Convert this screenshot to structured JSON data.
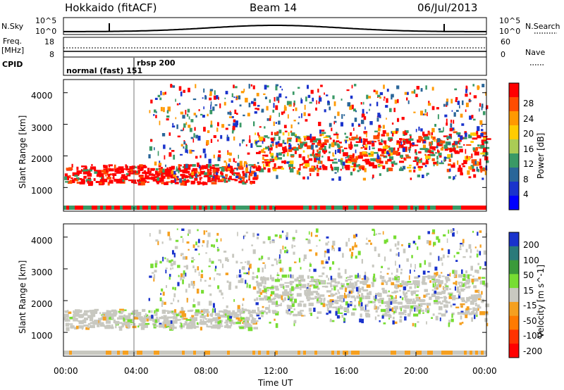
{
  "header": {
    "site": "Hokkaido (fitACF)",
    "beam": "Beam 14",
    "date": "06/Jul/2013"
  },
  "status_panels": {
    "nsky_label": "N.Sky",
    "nsearch_label": "N.Search",
    "freq_label_1": "Freq.",
    "freq_label_2": "[MHz]",
    "nave_label": "Nave",
    "cpid_label": "CPID",
    "left_ticks_noise": [
      "10^5",
      "10^0"
    ],
    "right_ticks_noise": [
      "10^5",
      "10^0"
    ],
    "left_ticks_freq": [
      "18",
      "8"
    ],
    "right_ticks_nave": [
      "60",
      "0"
    ],
    "cpid_modes": [
      "normal (fast) 151",
      "rbsp 200"
    ]
  },
  "chart_data": [
    {
      "type": "heatmap",
      "name": "Power",
      "ylabel": "Slant Range [km]",
      "yticks": [
        "1000",
        "2000",
        "3000",
        "4000"
      ],
      "colorbar": {
        "label": "Power [dB]",
        "ticks": [
          "28",
          "24",
          "20",
          "16",
          "12",
          "8",
          "4"
        ],
        "colors": [
          "#ff0000",
          "#ff4d00",
          "#ff9900",
          "#ffcc00",
          "#aacc55",
          "#3a9966",
          "#2a6699",
          "#1a33cc",
          "#0000ff"
        ]
      }
    },
    {
      "type": "heatmap",
      "name": "Velocity",
      "ylabel": "Slant Range [km]",
      "yticks": [
        "1000",
        "2000",
        "3000",
        "4000"
      ],
      "colorbar": {
        "label": "Velocity [m s^-1]",
        "ticks": [
          "200",
          "100",
          "50",
          "15",
          "-15",
          "-50",
          "-100",
          "-200"
        ],
        "colors": [
          "#1a33cc",
          "#2a7a7a",
          "#3a9a3a",
          "#77dd33",
          "#c8c8c0",
          "#f5a020",
          "#ff7a00",
          "#ff3300",
          "#ff0000"
        ]
      }
    }
  ],
  "xaxis": {
    "ticks": [
      "00:00",
      "04:00",
      "08:00",
      "12:00",
      "16:00",
      "20:00",
      "00:00"
    ],
    "label": "Time UT"
  }
}
